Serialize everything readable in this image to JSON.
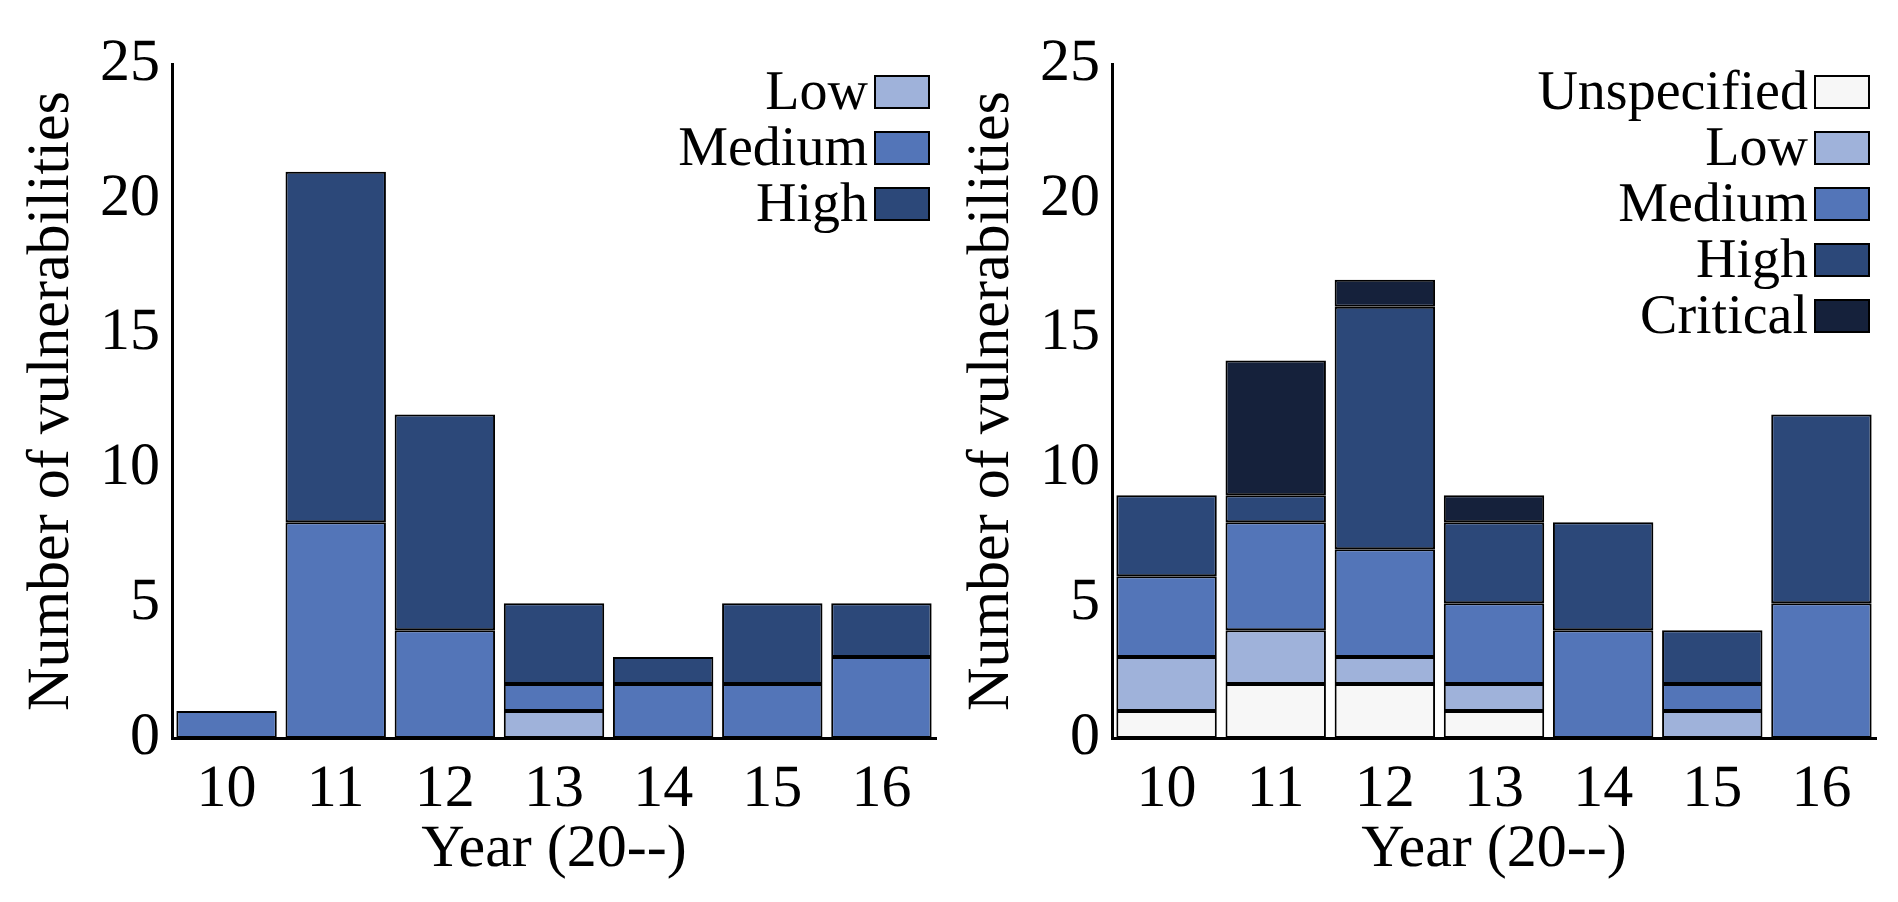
{
  "chart_data": [
    {
      "type": "bar",
      "stacked": true,
      "xlabel": "Year (20--)",
      "ylabel": "Number of vulnerabilities",
      "categories": [
        "10",
        "11",
        "12",
        "13",
        "14",
        "15",
        "16"
      ],
      "ylim": [
        0,
        25
      ],
      "yticks": [
        0,
        5,
        10,
        15,
        20,
        25
      ],
      "grid": false,
      "legend": "top right",
      "series": [
        {
          "name": "Low",
          "color": "#9fb2da",
          "values": [
            0,
            0,
            0,
            1,
            0,
            0,
            0
          ]
        },
        {
          "name": "Medium",
          "color": "#5375b8",
          "values": [
            1,
            8,
            4,
            1,
            2,
            2,
            3
          ]
        },
        {
          "name": "High",
          "color": "#2c4879",
          "values": [
            0,
            13,
            8,
            3,
            1,
            3,
            2
          ]
        }
      ]
    },
    {
      "type": "bar",
      "stacked": true,
      "xlabel": "Year (20--)",
      "ylabel": "Number of vulnerabilities",
      "categories": [
        "10",
        "11",
        "12",
        "13",
        "14",
        "15",
        "16"
      ],
      "ylim": [
        0,
        25
      ],
      "yticks": [
        0,
        5,
        10,
        15,
        20,
        25
      ],
      "grid": false,
      "legend": "top right",
      "series": [
        {
          "name": "Unspecified",
          "color": "#f7f7f7",
          "values": [
            1,
            2,
            2,
            1,
            0,
            0,
            0
          ]
        },
        {
          "name": "Low",
          "color": "#9fb2da",
          "values": [
            2,
            2,
            1,
            1,
            0,
            1,
            0
          ]
        },
        {
          "name": "Medium",
          "color": "#5375b8",
          "values": [
            3,
            4,
            4,
            3,
            4,
            1,
            5
          ]
        },
        {
          "name": "High",
          "color": "#2c4879",
          "values": [
            3,
            1,
            9,
            3,
            4,
            2,
            7
          ]
        },
        {
          "name": "Critical",
          "color": "#15213b",
          "values": [
            0,
            5,
            1,
            1,
            0,
            0,
            0
          ]
        }
      ]
    }
  ]
}
